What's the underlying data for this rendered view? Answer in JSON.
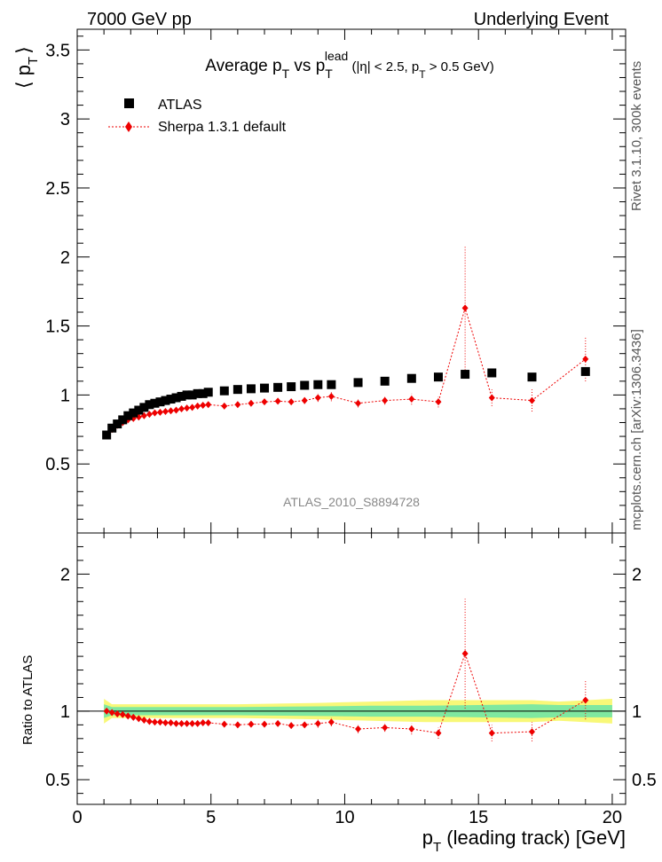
{
  "header": {
    "left": "7000 GeV pp",
    "right": "Underlying Event"
  },
  "side": {
    "rivet": "Rivet 3.1.10,  300k events",
    "mcplots": "mcplots.cern.ch [arXiv:1306.3436]"
  },
  "main": {
    "title_parts": {
      "a": "Average p",
      "b": "T",
      "c": " vs p",
      "d": "T",
      "e": "lead",
      "f": " (|η| < 2.5, p",
      "g": "T",
      "h": " > 0.5 GeV)"
    },
    "ylabel_a": "⟨ p",
    "ylabel_b": "T",
    "ylabel_c": "⟩",
    "watermark": "ATLAS_2010_S8894728",
    "legend": {
      "atlas": "ATLAS",
      "sherpa": "Sherpa 1.3.1 default"
    }
  },
  "ratio": {
    "ylabel": "Ratio to ATLAS"
  },
  "xlabel_a": "p",
  "xlabel_b": "T",
  "xlabel_c": " (leading track) [GeV]",
  "colors": {
    "atlas": "#000000",
    "sherpa": "#ee0000",
    "band_inner": "#7fe8a0",
    "band_outer": "#f8f878",
    "watermark": "#888888"
  },
  "chart_data": [
    {
      "type": "scatter",
      "title": "Average pT vs pT lead (|η| < 2.5, pT > 0.5 GeV)",
      "xlabel": "pT (leading track) [GeV]",
      "ylabel": "⟨ pT ⟩",
      "xlim": [
        0,
        20.5
      ],
      "ylim": [
        0,
        3.65
      ],
      "yticks": [
        "0.5",
        "1",
        "1.5",
        "2",
        "2.5",
        "3",
        "3.5"
      ],
      "series": [
        {
          "name": "ATLAS",
          "marker": "square",
          "x": [
            1.1,
            1.3,
            1.5,
            1.7,
            1.9,
            2.1,
            2.3,
            2.5,
            2.7,
            2.9,
            3.1,
            3.3,
            3.5,
            3.7,
            3.9,
            4.1,
            4.3,
            4.5,
            4.7,
            4.9,
            5.5,
            6.0,
            6.5,
            7.0,
            7.5,
            8.0,
            8.5,
            9.0,
            9.5,
            10.5,
            11.5,
            12.5,
            13.5,
            14.5,
            15.5,
            17.0,
            19.0
          ],
          "y": [
            0.71,
            0.76,
            0.79,
            0.82,
            0.85,
            0.87,
            0.89,
            0.91,
            0.93,
            0.94,
            0.95,
            0.96,
            0.97,
            0.98,
            0.99,
            1.0,
            1.0,
            1.01,
            1.01,
            1.02,
            1.03,
            1.04,
            1.045,
            1.05,
            1.055,
            1.06,
            1.07,
            1.075,
            1.075,
            1.09,
            1.1,
            1.12,
            1.13,
            1.15,
            1.16,
            1.13,
            1.17
          ]
        },
        {
          "name": "Sherpa 1.3.1 default",
          "marker": "diamond",
          "x": [
            1.1,
            1.3,
            1.5,
            1.7,
            1.9,
            2.1,
            2.3,
            2.5,
            2.7,
            2.9,
            3.1,
            3.3,
            3.5,
            3.7,
            3.9,
            4.1,
            4.3,
            4.5,
            4.7,
            4.9,
            5.5,
            6.0,
            6.5,
            7.0,
            7.5,
            8.0,
            8.5,
            9.0,
            9.5,
            10.5,
            11.5,
            12.5,
            13.5,
            14.5,
            15.5,
            17.0,
            19.0
          ],
          "y": [
            0.71,
            0.75,
            0.78,
            0.8,
            0.82,
            0.83,
            0.84,
            0.85,
            0.86,
            0.87,
            0.875,
            0.88,
            0.885,
            0.89,
            0.9,
            0.905,
            0.91,
            0.92,
            0.925,
            0.93,
            0.92,
            0.93,
            0.94,
            0.95,
            0.955,
            0.95,
            0.96,
            0.98,
            0.99,
            0.94,
            0.96,
            0.97,
            0.95,
            1.63,
            0.98,
            0.96,
            1.26
          ],
          "err": [
            0.01,
            0.01,
            0.01,
            0.01,
            0.01,
            0.01,
            0.01,
            0.01,
            0.01,
            0.01,
            0.01,
            0.01,
            0.01,
            0.01,
            0.01,
            0.01,
            0.01,
            0.01,
            0.01,
            0.01,
            0.02,
            0.02,
            0.02,
            0.02,
            0.02,
            0.02,
            0.025,
            0.03,
            0.035,
            0.03,
            0.03,
            0.04,
            0.04,
            0.45,
            0.06,
            0.08,
            0.16
          ]
        }
      ]
    },
    {
      "type": "scatter",
      "title": "",
      "xlabel": "pT (leading track) [GeV]",
      "ylabel": "Ratio to ATLAS",
      "xlim": [
        0,
        20.5
      ],
      "ylim": [
        0.32,
        2.3
      ],
      "yticks": [
        "0.5",
        "1",
        "2"
      ],
      "xticks": [
        "0",
        "5",
        "10",
        "15",
        "20"
      ],
      "series": [
        {
          "name": "Sherpa 1.3.1 default",
          "x": [
            1.1,
            1.3,
            1.5,
            1.7,
            1.9,
            2.1,
            2.3,
            2.5,
            2.7,
            2.9,
            3.1,
            3.3,
            3.5,
            3.7,
            3.9,
            4.1,
            4.3,
            4.5,
            4.7,
            4.9,
            5.5,
            6.0,
            6.5,
            7.0,
            7.5,
            8.0,
            8.5,
            9.0,
            9.5,
            10.5,
            11.5,
            12.5,
            13.5,
            14.5,
            15.5,
            17.0,
            19.0
          ],
          "y": [
            1.0,
            0.99,
            0.98,
            0.975,
            0.965,
            0.955,
            0.945,
            0.935,
            0.925,
            0.92,
            0.92,
            0.915,
            0.915,
            0.91,
            0.91,
            0.91,
            0.91,
            0.91,
            0.915,
            0.915,
            0.905,
            0.9,
            0.905,
            0.905,
            0.91,
            0.895,
            0.9,
            0.91,
            0.92,
            0.87,
            0.88,
            0.87,
            0.84,
            1.42,
            0.84,
            0.85,
            1.08
          ],
          "err": [
            0.01,
            0.01,
            0.01,
            0.01,
            0.01,
            0.01,
            0.01,
            0.01,
            0.01,
            0.01,
            0.01,
            0.01,
            0.01,
            0.01,
            0.01,
            0.01,
            0.01,
            0.01,
            0.01,
            0.01,
            0.02,
            0.02,
            0.02,
            0.02,
            0.02,
            0.02,
            0.02,
            0.03,
            0.03,
            0.03,
            0.03,
            0.04,
            0.04,
            0.4,
            0.06,
            0.07,
            0.14
          ]
        }
      ],
      "band": {
        "x": [
          1.0,
          1.3,
          3.0,
          6.0,
          9.0,
          11.0,
          13.0,
          15.0,
          17.0,
          18.0,
          20.0
        ],
        "inner": [
          0.05,
          0.03,
          0.03,
          0.03,
          0.035,
          0.04,
          0.04,
          0.045,
          0.05,
          0.045,
          0.045
        ],
        "outer": [
          0.09,
          0.05,
          0.05,
          0.05,
          0.06,
          0.07,
          0.08,
          0.08,
          0.08,
          0.07,
          0.09
        ]
      }
    }
  ]
}
